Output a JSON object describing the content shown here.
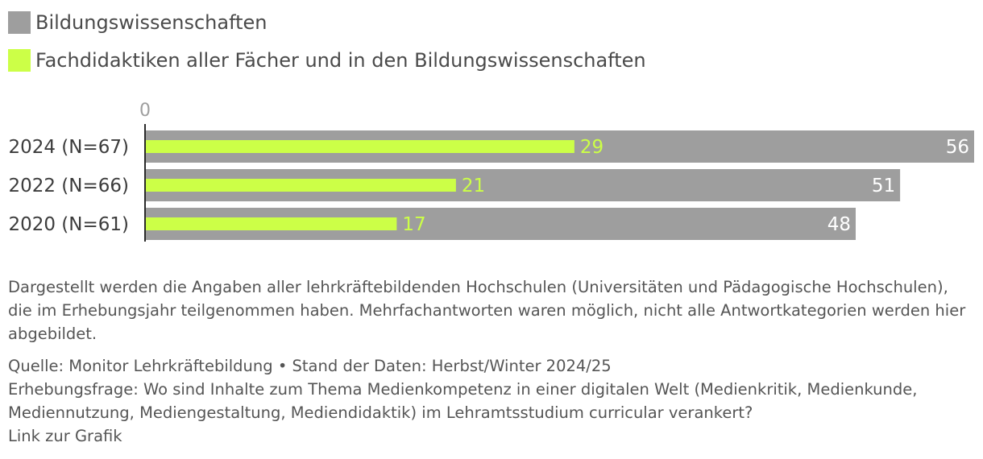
{
  "colors": {
    "series_bildung": "#9e9e9e",
    "series_fachdidaktik": "#ccff47",
    "axis": "#2b2b2b",
    "zero_tick": "#9e9e9e",
    "label_light": "#ffffff"
  },
  "chart_data": {
    "type": "bar",
    "orientation": "horizontal",
    "categories": [
      "2024 (N=67)",
      "2022 (N=66)",
      "2020 (N=61)"
    ],
    "series": [
      {
        "name": "Bildungswissenschaften",
        "values": [
          56,
          51,
          48
        ]
      },
      {
        "name": "Fachdidaktiken aller Fächer und in den Bildungswissenschaften",
        "values": [
          29,
          21,
          17
        ]
      }
    ],
    "xlim": [
      0,
      56
    ],
    "x_tick_labels": [
      "0"
    ],
    "grid": false,
    "legend_position": "top-left"
  },
  "footnote": "Dargestellt werden die Angaben aller lehrkräftebildenden Hochschulen (Universitäten und Pädagogische Hochschulen), die im Erhebungsjahr teilgenommen haben. Mehrfachantworten waren möglich, nicht alle Antwortkategorien werden hier abgebildet.",
  "source": {
    "line1": "Quelle: Monitor Lehrkräftebildung • Stand der Daten: Herbst/Winter 2024/25",
    "line2": "Erhebungsfrage: Wo sind Inhalte zum Thema Medienkompetenz in einer digitalen Welt (Medienkritik, Medienkunde,",
    "line3": "Mediennutzung, Mediengestaltung, Mediendidaktik) im Lehramtsstudium curricular verankert?",
    "link_label": "Link zur Grafik"
  }
}
